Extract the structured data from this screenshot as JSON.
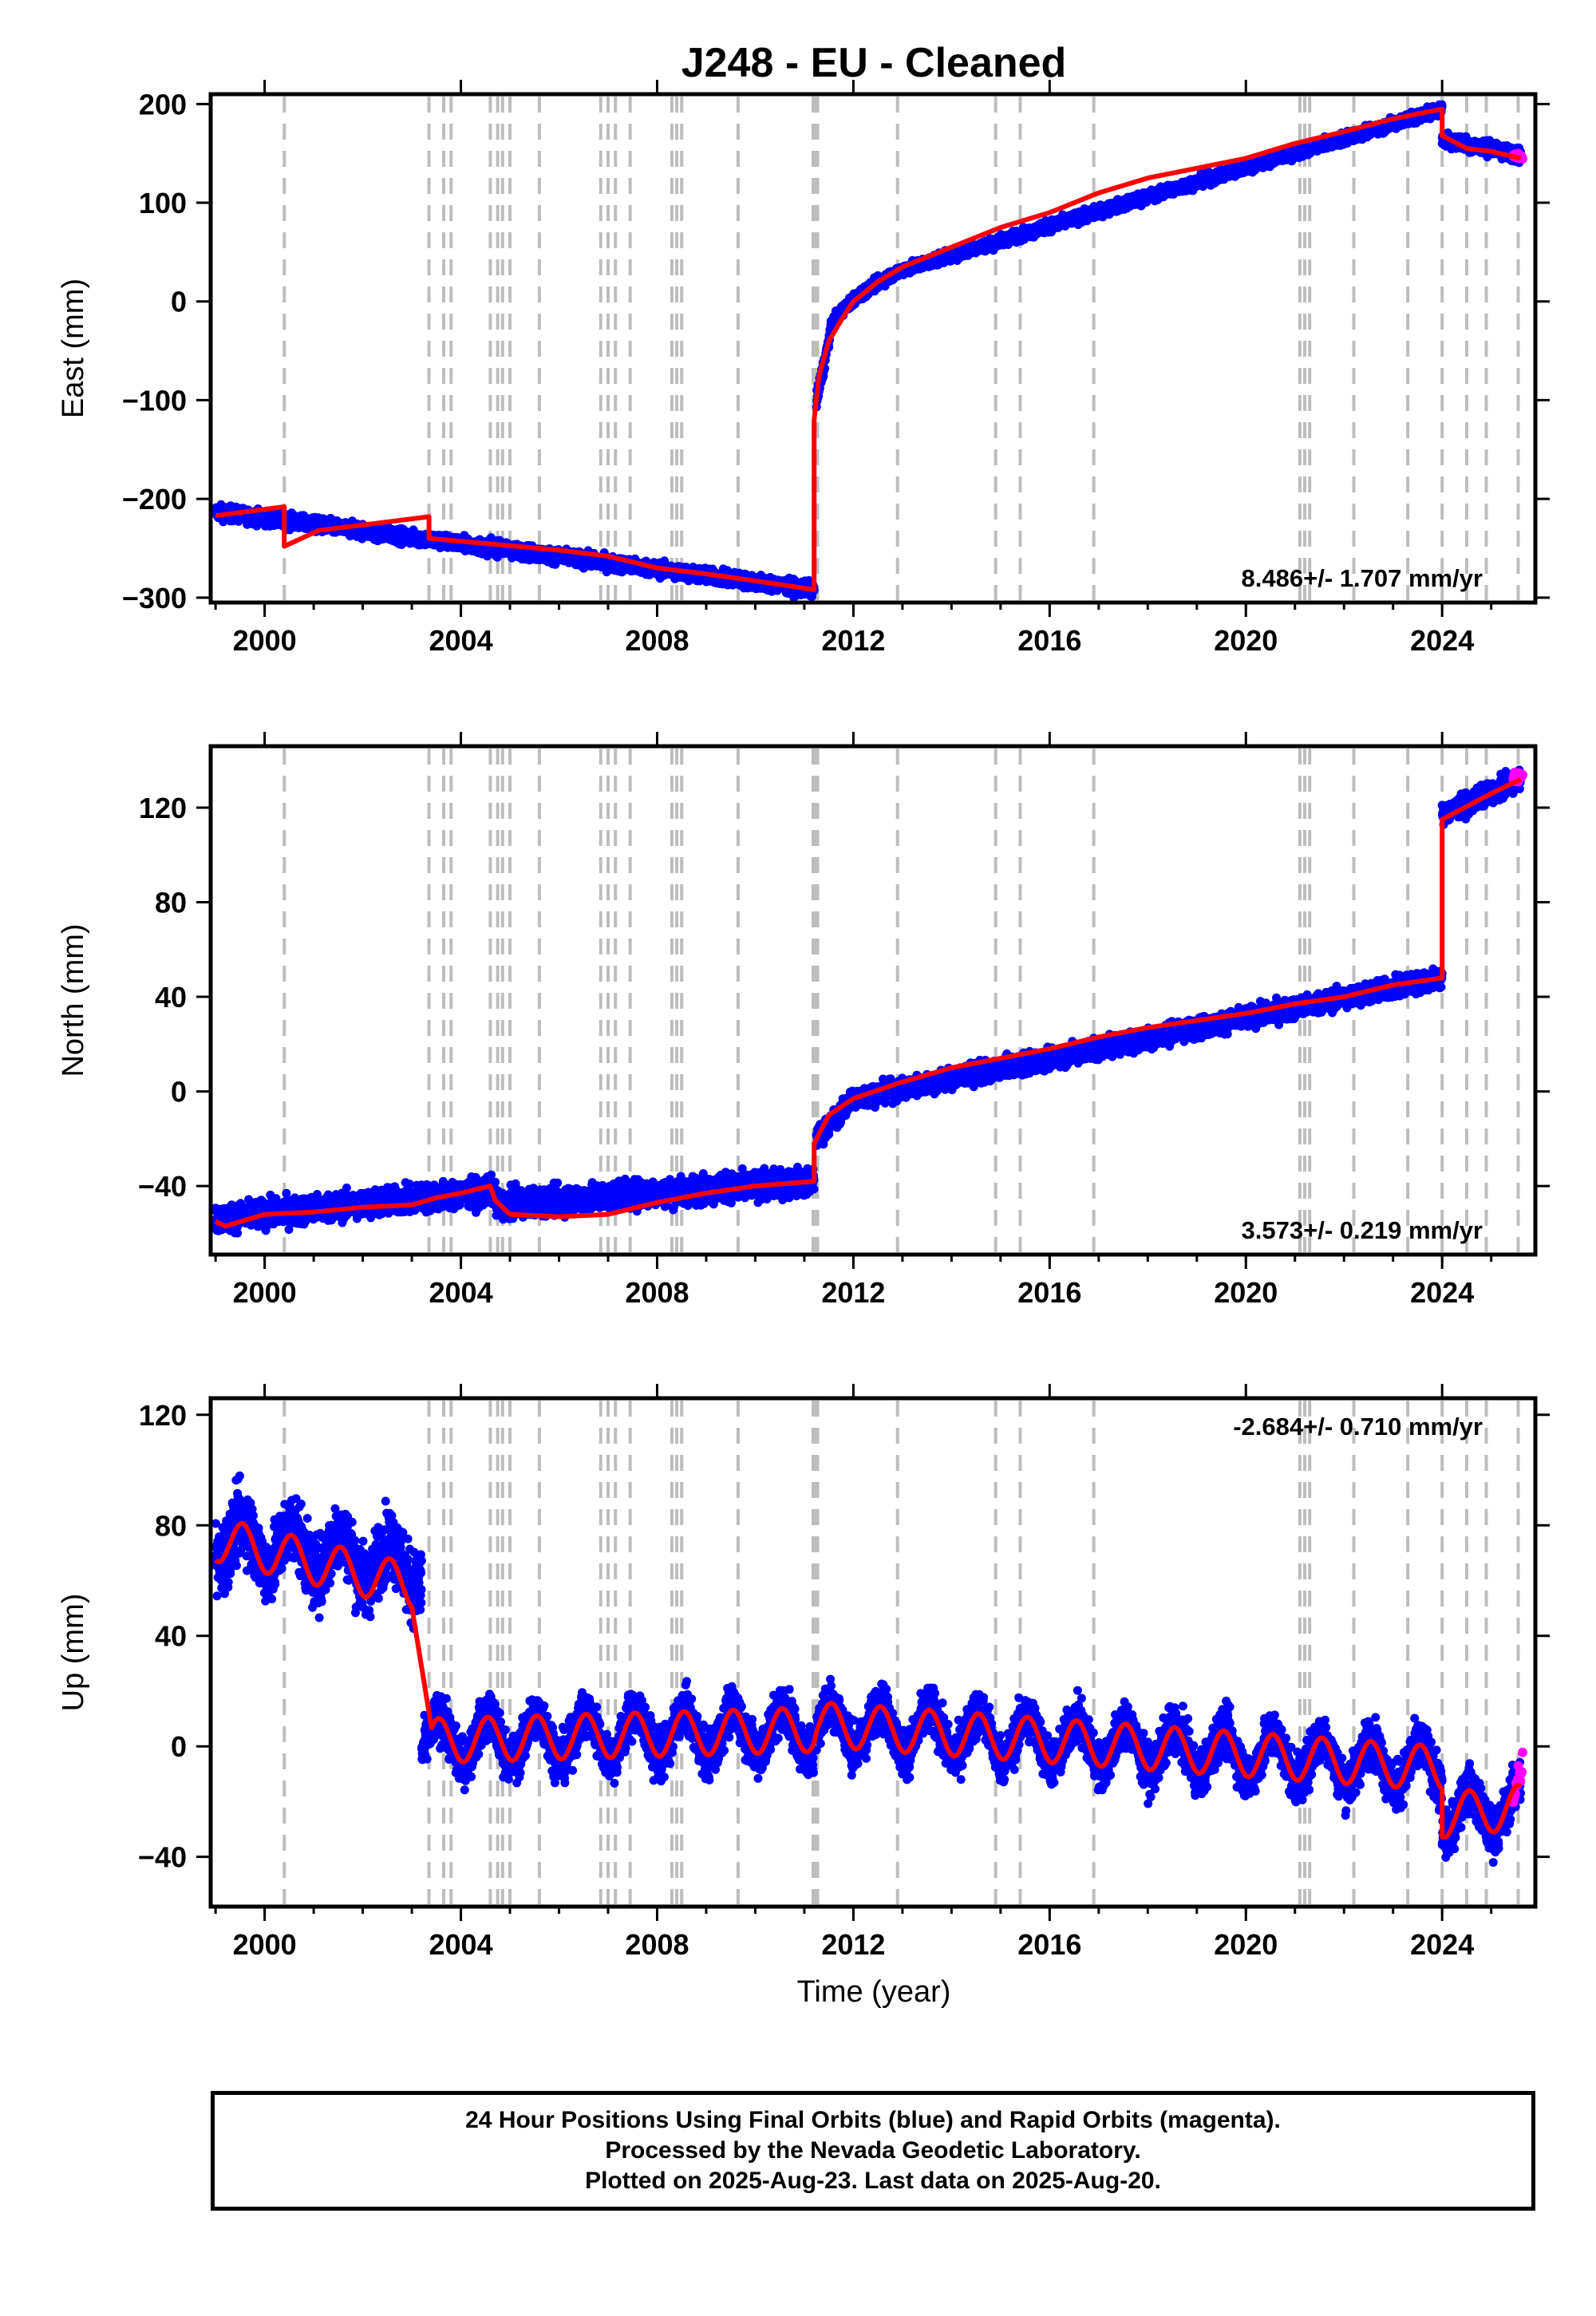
{
  "title": "J248  - EU - Cleaned",
  "colors": {
    "final_orbit_points": "#0000ff",
    "rapid_orbit_points": "#ff00ff",
    "model_line": "#ff0000",
    "event_lines": "#bdbdbd"
  },
  "xaxis": {
    "label": "Time (year)",
    "range": [
      1998.9,
      2025.9
    ],
    "ticks": [
      "2000",
      "2004",
      "2008",
      "2012",
      "2016",
      "2020",
      "2024"
    ]
  },
  "event_years": [
    2000.4,
    2003.35,
    2003.65,
    2003.8,
    2004.6,
    2004.75,
    2004.85,
    2005.0,
    2005.6,
    2006.85,
    2007.0,
    2007.15,
    2007.45,
    2008.3,
    2008.4,
    2008.5,
    2009.65,
    2011.18,
    2011.22,
    2011.27,
    2012.9,
    2014.9,
    2015.4,
    2016.9,
    2021.1,
    2021.2,
    2021.3,
    2022.2,
    2023.3,
    2024.0,
    2024.5,
    2024.9,
    2025.55
  ],
  "chart_data": [
    {
      "type": "scatter",
      "panel": "east",
      "ylabel": "East (mm)",
      "ylim": [
        -305,
        210
      ],
      "yticks": [
        "200",
        "100",
        "0",
        "−100",
        "−200",
        "−300"
      ],
      "ytick_values": [
        200,
        100,
        0,
        -100,
        -200,
        -300
      ],
      "rate_text": "8.486+/- 1.707 mm/yr",
      "rate_position": "bottom-right",
      "model": {
        "x": [
          1999.0,
          2000.4,
          2000.4,
          2001.1,
          2003.35,
          2003.35,
          2006.0,
          2007.0,
          2008.0,
          2009.0,
          2010.0,
          2011.2,
          2011.2,
          2011.3,
          2011.5,
          2011.8,
          2012.0,
          2012.5,
          2013.0,
          2014.0,
          2015.0,
          2016.0,
          2017.0,
          2018.0,
          2019.0,
          2020.0,
          2021.0,
          2022.0,
          2023.0,
          2024.0,
          2024.0,
          2024.5,
          2025.0,
          2025.6
        ],
        "y": [
          -217,
          -208,
          -248,
          -232,
          -218,
          -240,
          -252,
          -258,
          -270,
          -276,
          -283,
          -292,
          -120,
          -75,
          -40,
          -15,
          0,
          20,
          35,
          55,
          75,
          90,
          110,
          125,
          135,
          145,
          160,
          172,
          185,
          195,
          168,
          155,
          152,
          145
        ]
      },
      "final_points": {
        "segments": [
          {
            "x_start": 1999.0,
            "y_start": -213,
            "x_end": 2011.2,
            "y_end": -292,
            "scatter": 5
          },
          {
            "x_start": 2011.25,
            "y_start": -100,
            "x_end": 2011.5,
            "y_end": -40,
            "scatter": 6
          },
          {
            "x_start": 2011.5,
            "y_start": -40,
            "x_end": 2013.0,
            "y_end": 32,
            "scatter": 4
          },
          {
            "x_start": 2013.0,
            "y_start": 32,
            "x_end": 2024.0,
            "y_end": 195,
            "scatter": 4
          },
          {
            "x_start": 2024.0,
            "y_start": 165,
            "x_end": 2025.6,
            "y_end": 148,
            "scatter": 5
          }
        ]
      },
      "rapid_points": {
        "x_start": 2025.45,
        "x_end": 2025.64,
        "y_start": 148,
        "y_end": 146,
        "scatter": 2
      }
    },
    {
      "type": "scatter",
      "panel": "north",
      "ylabel": "North (mm)",
      "ylim": [
        -69,
        146
      ],
      "yticks": [
        "120",
        "80",
        "40",
        "0",
        "−40"
      ],
      "ytick_values": [
        120,
        80,
        40,
        0,
        -40
      ],
      "rate_text": "3.573+/- 0.219 mm/yr",
      "rate_position": "bottom-right",
      "model": {
        "x": [
          1999.0,
          1999.2,
          2000.0,
          2001.0,
          2002.0,
          2003.0,
          2003.5,
          2004.0,
          2004.6,
          2004.7,
          2005.0,
          2006.0,
          2007.0,
          2008.0,
          2009.0,
          2010.0,
          2011.2,
          2011.2,
          2011.5,
          2012.0,
          2013.0,
          2014.0,
          2015.0,
          2016.0,
          2017.0,
          2018.0,
          2019.0,
          2020.0,
          2021.0,
          2022.0,
          2023.0,
          2024.0,
          2024.0,
          2025.0,
          2025.6
        ],
        "y": [
          -55,
          -57,
          -52,
          -51,
          -49,
          -48,
          -45,
          -43,
          -40,
          -46,
          -52,
          -53,
          -52,
          -47,
          -43,
          -40,
          -38,
          -22,
          -10,
          -3,
          4,
          10,
          14,
          18,
          23,
          27,
          30,
          33,
          37,
          40,
          45,
          48,
          115,
          126,
          132
        ]
      },
      "final_points": {
        "segments": [
          {
            "x_start": 1999.0,
            "y_start": -54,
            "x_end": 2004.7,
            "y_end": -42,
            "scatter": 4
          },
          {
            "x_start": 2004.7,
            "y_start": -48,
            "x_end": 2011.2,
            "y_end": -38,
            "scatter": 4
          },
          {
            "x_start": 2011.25,
            "y_start": -20,
            "x_end": 2012.0,
            "y_end": -3,
            "scatter": 3
          },
          {
            "x_start": 2012.0,
            "y_start": -3,
            "x_end": 2024.0,
            "y_end": 48,
            "scatter": 3
          },
          {
            "x_start": 2024.0,
            "y_start": 117,
            "x_end": 2025.6,
            "y_end": 132,
            "scatter": 3
          }
        ]
      },
      "rapid_points": {
        "x_start": 2025.45,
        "x_end": 2025.64,
        "y_start": 132,
        "y_end": 135,
        "scatter": 2
      }
    },
    {
      "type": "scatter",
      "panel": "up",
      "ylabel": "Up (mm)",
      "ylim": [
        -58,
        126
      ],
      "yticks": [
        "120",
        "80",
        "40",
        "0",
        "−40"
      ],
      "ytick_values": [
        120,
        80,
        40,
        0,
        -40
      ],
      "rate_text": "-2.684+/- 0.710 mm/yr",
      "rate_position": "top-right",
      "model": {
        "seasonal_amplitude": 8,
        "segments": [
          {
            "x_start": 1999.0,
            "y_start": 75,
            "x_end": 2003.0,
            "y_end": 58
          },
          {
            "x_start": 2003.4,
            "y_start": 2,
            "x_end": 2011.2,
            "y_end": 6
          },
          {
            "x_start": 2011.25,
            "y_start": 8,
            "x_end": 2024.0,
            "y_end": -8
          },
          {
            "x_start": 2024.0,
            "y_start": -25,
            "x_end": 2025.6,
            "y_end": -22
          }
        ]
      },
      "final_points": {
        "segments": [
          {
            "x_start": 1999.0,
            "y_start": 75,
            "x_end": 2003.2,
            "y_end": 65,
            "scatter": 9
          },
          {
            "x_start": 2003.2,
            "y_start": 2,
            "x_end": 2011.2,
            "y_end": 6,
            "scatter": 6
          },
          {
            "x_start": 2011.25,
            "y_start": 8,
            "x_end": 2024.0,
            "y_end": -8,
            "scatter": 6
          },
          {
            "x_start": 2024.0,
            "y_start": -25,
            "x_end": 2025.6,
            "y_end": -22,
            "scatter": 6
          }
        ]
      },
      "rapid_points": {
        "x_start": 2025.45,
        "x_end": 2025.64,
        "y_start": -20,
        "y_end": -5,
        "scatter": 4
      }
    }
  ],
  "footer": {
    "line1": "24 Hour Positions Using Final Orbits (blue) and Rapid Orbits (magenta).",
    "line2": "Processed by the Nevada Geodetic Laboratory.",
    "line3": "Plotted on 2025-Aug-23. Last data on 2025-Aug-20."
  }
}
